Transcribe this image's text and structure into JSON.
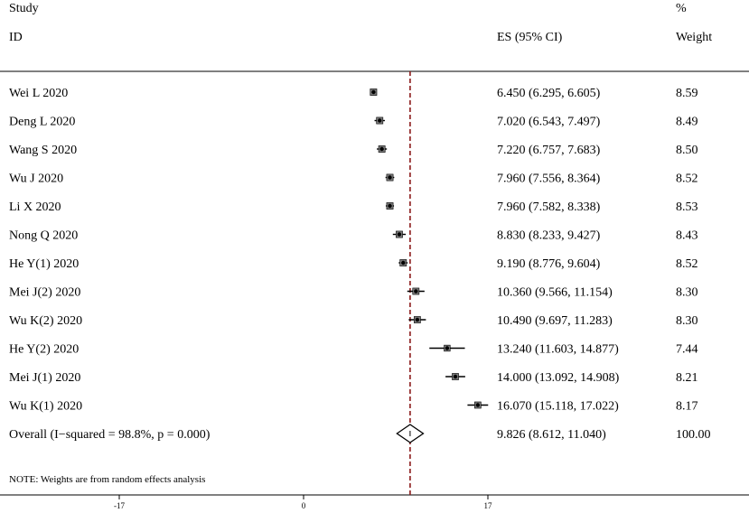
{
  "header": {
    "study_line1": "Study",
    "study_line2": "ID",
    "es": "ES (95% CI)",
    "weight_line1": "%",
    "weight_line2": "Weight"
  },
  "note": "NOTE: Weights are from random effects analysis",
  "chart_data": {
    "type": "forest",
    "xlim": [
      -17,
      34
    ],
    "xticks": [
      -17,
      0,
      17
    ],
    "xtick_labels": [
      "-17",
      "0",
      "17"
    ],
    "reference_line": 9.826,
    "studies": [
      {
        "id": "Wei L 2020",
        "es": 6.45,
        "lo": 6.295,
        "hi": 6.605,
        "es_text": "6.450 (6.295, 6.605)",
        "weight": 8.59,
        "weight_text": "8.59"
      },
      {
        "id": "Deng L 2020",
        "es": 7.02,
        "lo": 6.543,
        "hi": 7.497,
        "es_text": "7.020 (6.543, 7.497)",
        "weight": 8.49,
        "weight_text": "8.49"
      },
      {
        "id": "Wang S 2020",
        "es": 7.22,
        "lo": 6.757,
        "hi": 7.683,
        "es_text": "7.220 (6.757, 7.683)",
        "weight": 8.5,
        "weight_text": "8.50"
      },
      {
        "id": "Wu J 2020",
        "es": 7.96,
        "lo": 7.556,
        "hi": 8.364,
        "es_text": "7.960 (7.556, 8.364)",
        "weight": 8.52,
        "weight_text": "8.52"
      },
      {
        "id": "Li X 2020",
        "es": 7.96,
        "lo": 7.582,
        "hi": 8.338,
        "es_text": "7.960 (7.582, 8.338)",
        "weight": 8.53,
        "weight_text": "8.53"
      },
      {
        "id": "Nong Q 2020",
        "es": 8.83,
        "lo": 8.233,
        "hi": 9.427,
        "es_text": "8.830 (8.233, 9.427)",
        "weight": 8.43,
        "weight_text": "8.43"
      },
      {
        "id": "He Y(1) 2020",
        "es": 9.19,
        "lo": 8.776,
        "hi": 9.604,
        "es_text": "9.190 (8.776, 9.604)",
        "weight": 8.52,
        "weight_text": "8.52"
      },
      {
        "id": "Mei J(2) 2020",
        "es": 10.36,
        "lo": 9.566,
        "hi": 11.154,
        "es_text": "10.360 (9.566, 11.154)",
        "weight": 8.3,
        "weight_text": "8.30"
      },
      {
        "id": "Wu K(2) 2020",
        "es": 10.49,
        "lo": 9.697,
        "hi": 11.283,
        "es_text": "10.490 (9.697, 11.283)",
        "weight": 8.3,
        "weight_text": "8.30"
      },
      {
        "id": "He Y(2) 2020",
        "es": 13.24,
        "lo": 11.603,
        "hi": 14.877,
        "es_text": "13.240 (11.603, 14.877)",
        "weight": 7.44,
        "weight_text": "7.44"
      },
      {
        "id": "Mei J(1) 2020",
        "es": 14.0,
        "lo": 13.092,
        "hi": 14.908,
        "es_text": "14.000 (13.092, 14.908)",
        "weight": 8.21,
        "weight_text": "8.21"
      },
      {
        "id": "Wu K(1) 2020",
        "es": 16.07,
        "lo": 15.118,
        "hi": 17.022,
        "es_text": "16.070 (15.118, 17.022)",
        "weight": 8.17,
        "weight_text": "8.17"
      }
    ],
    "overall": {
      "id": "Overall  (I−squared = 98.8%, p = 0.000)",
      "es": 9.826,
      "lo": 8.612,
      "hi": 11.04,
      "es_text": "9.826 (8.612, 11.040)",
      "weight": 100.0,
      "weight_text": "100.00"
    },
    "colors": {
      "ink": "#000000",
      "reference": "#8b1a1a",
      "rule": "#000000"
    }
  }
}
